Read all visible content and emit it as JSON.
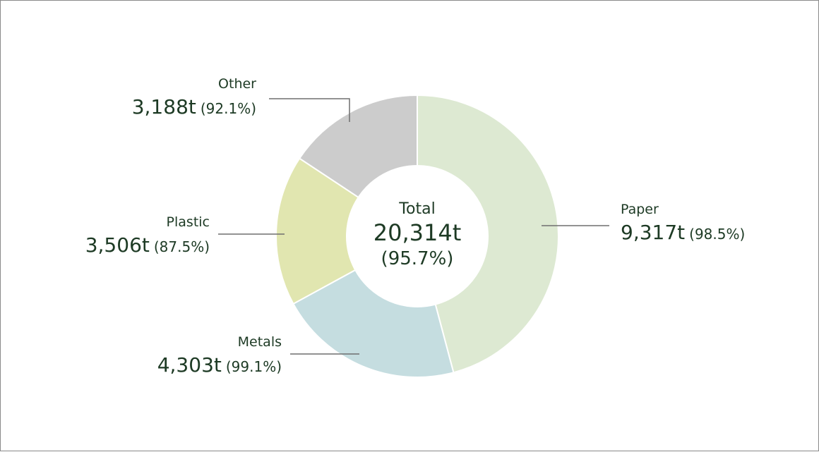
{
  "chart_data": {
    "type": "pie",
    "center": {
      "title": "Total",
      "value": "20,314t",
      "percent": "(95.7%)"
    },
    "slices": [
      {
        "name": "Paper",
        "amount": 9317,
        "amount_label": "9,317t",
        "percent_label": "(98.5%)",
        "color": "#dde9d2"
      },
      {
        "name": "Metals",
        "amount": 4303,
        "amount_label": "4,303t",
        "percent_label": "(99.1%)",
        "color": "#c5dde0"
      },
      {
        "name": "Plastic",
        "amount": 3506,
        "amount_label": "3,506t",
        "percent_label": "(87.5%)",
        "color": "#e1e6b0"
      },
      {
        "name": "Other",
        "amount": 3188,
        "amount_label": "3,188t",
        "percent_label": "(92.1%)",
        "color": "#cccccc"
      }
    ],
    "leader_line_color": "#6f6f6f",
    "text_color": "#1d3a24"
  }
}
